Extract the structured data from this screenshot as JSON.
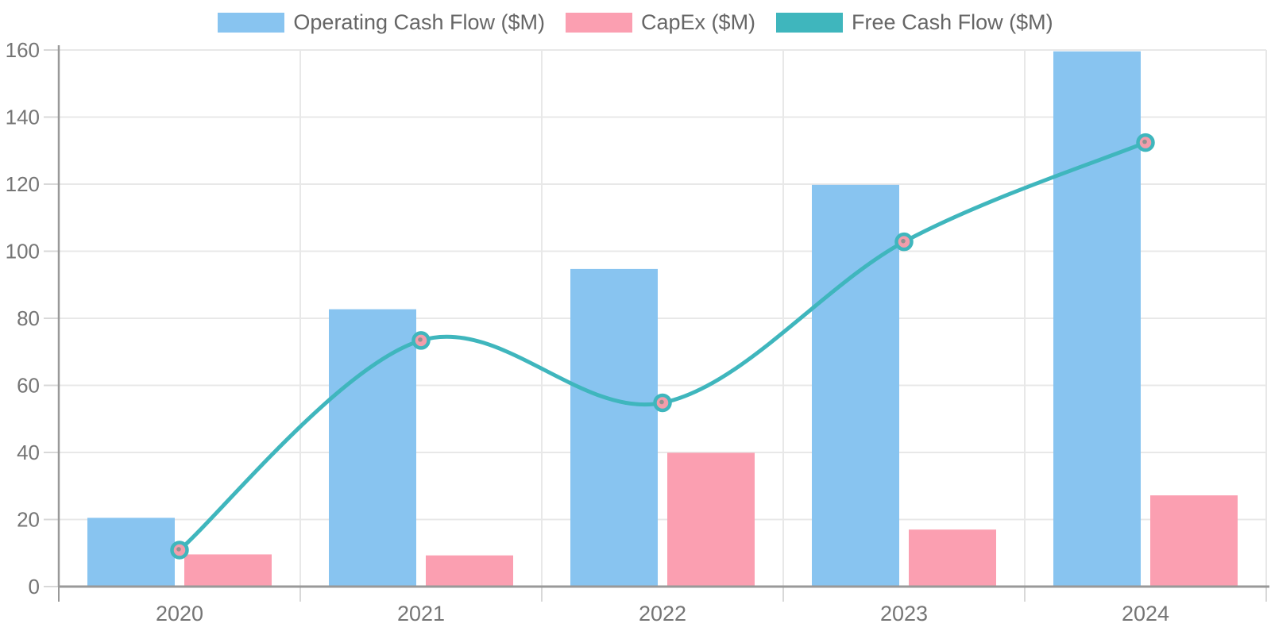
{
  "chart_data": {
    "type": "combo-bar-line",
    "title": "",
    "categories": [
      "2020",
      "2021",
      "2022",
      "2023",
      "2024"
    ],
    "series": [
      {
        "name": "Operating Cash Flow ($M)",
        "type": "bar",
        "color": "#88C4F0",
        "values": [
          20.5,
          82.7,
          94.7,
          119.8,
          159.6
        ]
      },
      {
        "name": "CapEx ($M)",
        "type": "bar",
        "color": "#FB9FB1",
        "values": [
          9.6,
          9.3,
          39.9,
          17.0,
          27.2
        ]
      },
      {
        "name": "Free Cash Flow ($M)",
        "type": "line",
        "color": "#3FB6BD",
        "values": [
          10.9,
          73.4,
          54.8,
          102.8,
          132.4
        ]
      }
    ],
    "y_axis": {
      "min": 0,
      "max": 160,
      "step": 20,
      "ticks": [
        0,
        20,
        40,
        60,
        80,
        100,
        120,
        140,
        160
      ]
    },
    "x_axis": {
      "labels": [
        "2020",
        "2021",
        "2022",
        "2023",
        "2024"
      ]
    },
    "legend_position": "top",
    "grid": true,
    "line_smooth": true,
    "marker": {
      "fill": "#F39DAB",
      "stroke": "#3FB6BD",
      "dot": "#919191"
    },
    "colors": {
      "background": "#FFFFFF",
      "grid": "#E8E8E8",
      "axis": "#999999",
      "tick": "#D8D8D8",
      "axis_label": "#757575",
      "legend_label": "#666666"
    }
  }
}
